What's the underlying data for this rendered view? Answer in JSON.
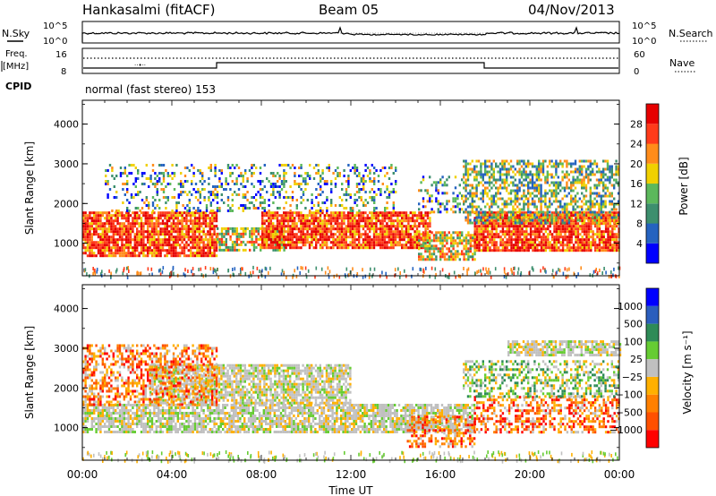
{
  "header": {
    "station": "Hankasalmi (fitACF)",
    "beam": "Beam 05",
    "date": "04/Nov/2013"
  },
  "noise_panel": {
    "left_label": "N.Sky",
    "left_ticks": [
      "10^5",
      "10^0"
    ],
    "right_ticks": [
      "10^5",
      "10^0"
    ],
    "right_label": "N.Search"
  },
  "freq_panel": {
    "left_label_1": "Freq.",
    "left_label_2": "[MHz]",
    "left_ticks": [
      "16",
      "8"
    ],
    "cpid_label": "CPID",
    "right_ticks": [
      "60",
      "0"
    ],
    "right_label": "Nave",
    "cpid_text": "normal (fast stereo) 153"
  },
  "chart_data": [
    {
      "type": "heatmap",
      "quantity": "power",
      "ylabel": "Slant Range [km]",
      "ylim": [
        180,
        4600
      ],
      "yticks": [
        "1000",
        "2000",
        "3000",
        "4000"
      ],
      "xlabel": "Time UT",
      "xlim": [
        0,
        24
      ],
      "colorbar_label": "Power [dB]",
      "colorbar_ticks": [
        "4",
        "8",
        "12",
        "16",
        "20",
        "24",
        "28"
      ],
      "colorbar_colors": [
        "#0000ff",
        "#2563c0",
        "#3d8f6e",
        "#5cb85c",
        "#f0d000",
        "#ff8c1a",
        "#ff3b1a",
        "#e60000"
      ],
      "bands": [
        {
          "t0": 0.0,
          "t1": 6.0,
          "r0": 700,
          "r1": 1800,
          "level": "high"
        },
        {
          "t0": 6.0,
          "t1": 9.0,
          "r0": 800,
          "r1": 1400,
          "level": "mid"
        },
        {
          "t0": 8.0,
          "t1": 15.5,
          "r0": 900,
          "r1": 1800,
          "level": "high"
        },
        {
          "t0": 15.0,
          "t1": 17.5,
          "r0": 600,
          "r1": 1300,
          "level": "mid"
        },
        {
          "t0": 17.5,
          "t1": 24.0,
          "r0": 800,
          "r1": 1800,
          "level": "high"
        },
        {
          "t0": 1.0,
          "t1": 14.0,
          "r0": 1800,
          "r1": 3000,
          "level": "sparse"
        },
        {
          "t0": 15.0,
          "t1": 17.0,
          "r0": 1800,
          "r1": 2700,
          "level": "sparse"
        },
        {
          "t0": 17.0,
          "t1": 24.0,
          "r0": 1500,
          "r1": 3100,
          "level": "low"
        }
      ]
    },
    {
      "type": "heatmap",
      "quantity": "velocity",
      "ylabel": "Slant Range [km]",
      "ylim": [
        180,
        4600
      ],
      "yticks": [
        "1000",
        "2000",
        "3000",
        "4000"
      ],
      "xlabel": "Time UT",
      "xticks": [
        "00:00",
        "04:00",
        "08:00",
        "12:00",
        "16:00",
        "20:00",
        "00:00"
      ],
      "xlim": [
        0,
        24
      ],
      "colorbar_label": "Velocity [m s⁻¹]",
      "colorbar_ticks": [
        "1000",
        "500",
        "100",
        "25",
        "−25",
        "−100",
        "−500",
        "−1000"
      ],
      "colorbar_colors": [
        "#0000ff",
        "#2b5ebd",
        "#2e8b57",
        "#66cc33",
        "#c0c0c0",
        "#ffb000",
        "#ff8000",
        "#ff5000",
        "#ff0000"
      ],
      "bands": [
        {
          "t0": 0.0,
          "t1": 17.5,
          "r0": 900,
          "r1": 1600,
          "level": "grey"
        },
        {
          "t0": 3.0,
          "t1": 12.0,
          "r0": 1600,
          "r1": 2600,
          "level": "grey"
        },
        {
          "t0": 0.0,
          "t1": 6.0,
          "r0": 1600,
          "r1": 3100,
          "level": "orange"
        },
        {
          "t0": 14.5,
          "t1": 17.5,
          "r0": 500,
          "r1": 1300,
          "level": "orange"
        },
        {
          "t0": 17.5,
          "t1": 24.0,
          "r0": 900,
          "r1": 1800,
          "level": "orange"
        },
        {
          "t0": 17.0,
          "t1": 24.0,
          "r0": 1800,
          "r1": 2700,
          "level": "green"
        },
        {
          "t0": 19.0,
          "t1": 24.0,
          "r0": 2800,
          "r1": 3200,
          "level": "grey"
        }
      ]
    }
  ]
}
